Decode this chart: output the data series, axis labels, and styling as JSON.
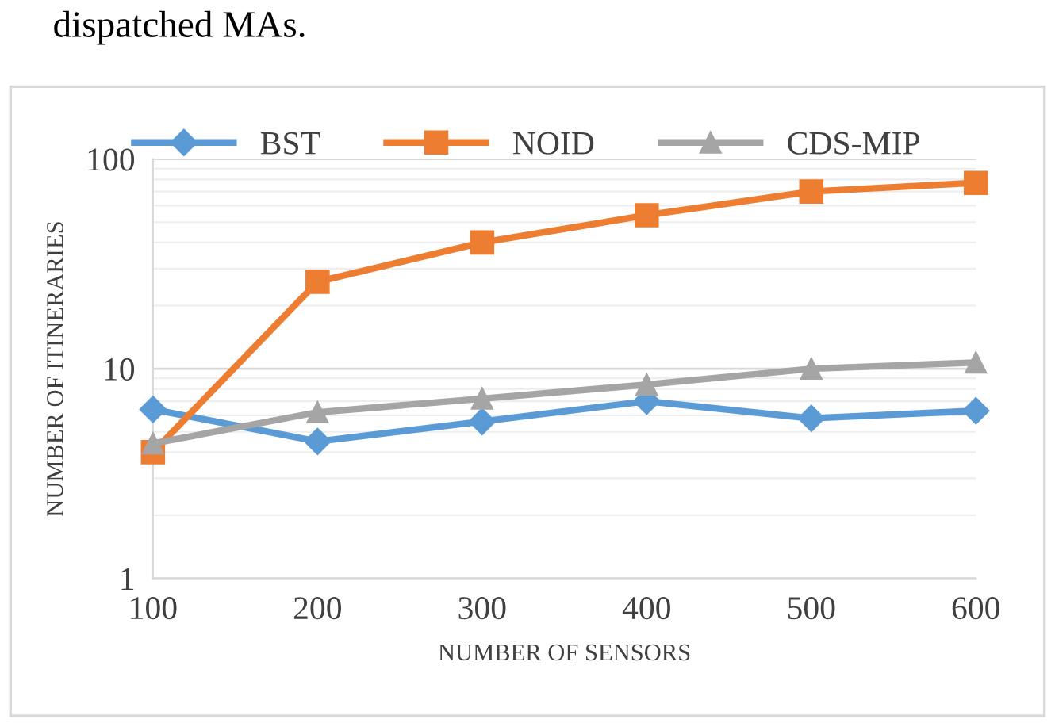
{
  "chart_data": {
    "type": "line",
    "xlabel": "NUMBER OF SENSORS",
    "ylabel": "NUMBER OF ITINERARIES",
    "annotations": [
      "dispatched MAs."
    ],
    "x": [
      100,
      200,
      300,
      400,
      500,
      600
    ],
    "series": [
      {
        "name": "BST",
        "color": "#5b9bd5",
        "marker": "diamond",
        "values": [
          6.4,
          4.5,
          5.6,
          7.0,
          5.8,
          6.3
        ]
      },
      {
        "name": "NOID",
        "color": "#ed7d31",
        "marker": "square",
        "values": [
          4.0,
          26,
          40,
          54,
          70,
          77
        ]
      },
      {
        "name": "CDS-MIP",
        "color": "#a5a5a5",
        "marker": "triangle",
        "values": [
          4.4,
          6.2,
          7.2,
          8.4,
          10,
          10.7
        ]
      }
    ],
    "xlim": [
      100,
      600
    ],
    "xticks": [
      100,
      200,
      300,
      400,
      500,
      600
    ],
    "ylim": [
      1,
      100
    ],
    "yticks": [
      1,
      10,
      100
    ],
    "log": "y",
    "grid": "y",
    "legend": "top",
    "line_style": "solid"
  }
}
